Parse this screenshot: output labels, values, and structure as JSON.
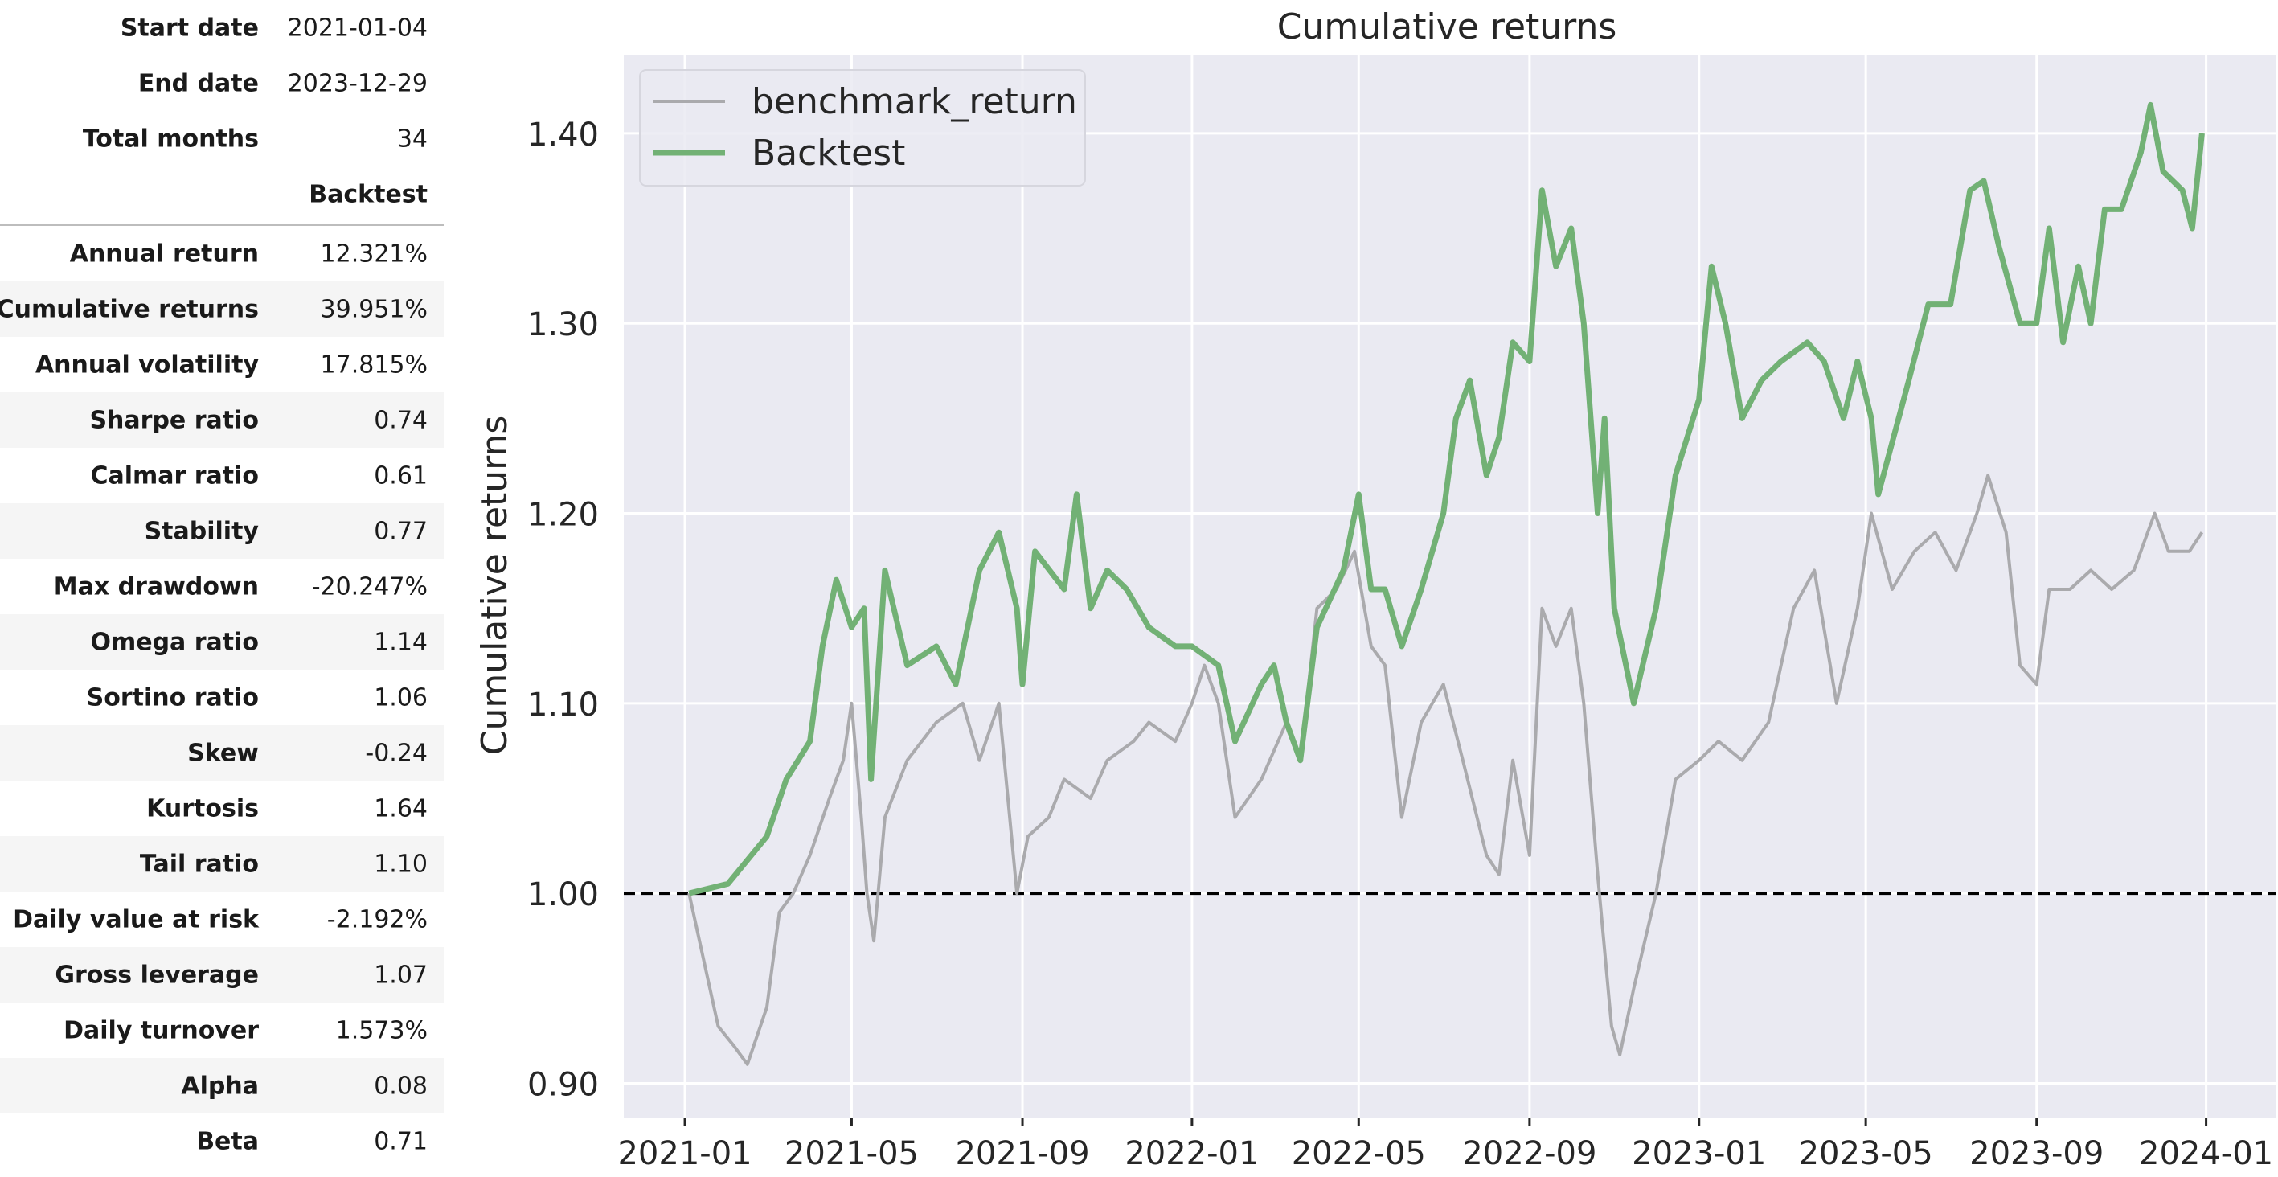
{
  "stats_table": {
    "header_rows": [
      {
        "label": "Start date",
        "value": "2021-01-04"
      },
      {
        "label": "End date",
        "value": "2023-12-29"
      },
      {
        "label": "Total months",
        "value": "34"
      }
    ],
    "column_header": "Backtest",
    "rows": [
      {
        "label": "Annual return",
        "value": "12.321%"
      },
      {
        "label": "Cumulative returns",
        "value": "39.951%"
      },
      {
        "label": "Annual volatility",
        "value": "17.815%"
      },
      {
        "label": "Sharpe ratio",
        "value": "0.74"
      },
      {
        "label": "Calmar ratio",
        "value": "0.61"
      },
      {
        "label": "Stability",
        "value": "0.77"
      },
      {
        "label": "Max drawdown",
        "value": "-20.247%"
      },
      {
        "label": "Omega ratio",
        "value": "1.14"
      },
      {
        "label": "Sortino ratio",
        "value": "1.06"
      },
      {
        "label": "Skew",
        "value": "-0.24"
      },
      {
        "label": "Kurtosis",
        "value": "1.64"
      },
      {
        "label": "Tail ratio",
        "value": "1.10"
      },
      {
        "label": "Daily value at risk",
        "value": "-2.192%"
      },
      {
        "label": "Gross leverage",
        "value": "1.07"
      },
      {
        "label": "Daily turnover",
        "value": "1.573%"
      },
      {
        "label": "Alpha",
        "value": "0.08"
      },
      {
        "label": "Beta",
        "value": "0.71"
      }
    ]
  },
  "chart_data": {
    "type": "line",
    "title": "Cumulative returns",
    "xlabel": "",
    "ylabel": "Cumulative returns",
    "xlim": [
      "2020-11-18",
      "2024-02-20"
    ],
    "ylim": [
      0.882,
      1.441
    ],
    "x_ticks": [
      "2021-01",
      "2021-05",
      "2021-09",
      "2022-01",
      "2022-05",
      "2022-09",
      "2023-01",
      "2023-05",
      "2023-09",
      "2024-01"
    ],
    "y_ticks": [
      "0.90",
      "1.00",
      "1.10",
      "1.20",
      "1.30",
      "1.40"
    ],
    "grid": true,
    "background": "#eaeaf2",
    "legend_position": "top-left",
    "reference_line": {
      "y": 1.0,
      "style": "dashed",
      "color": "#000000"
    },
    "series": [
      {
        "name": "benchmark_return",
        "color": "#aaaaad",
        "points": [
          [
            "2021-01-04",
            1.0
          ],
          [
            "2021-01-10",
            0.98
          ],
          [
            "2021-01-25",
            0.93
          ],
          [
            "2021-02-05",
            0.92
          ],
          [
            "2021-02-15",
            0.91
          ],
          [
            "2021-03-01",
            0.94
          ],
          [
            "2021-03-10",
            0.99
          ],
          [
            "2021-03-20",
            1.0
          ],
          [
            "2021-04-01",
            1.02
          ],
          [
            "2021-04-15",
            1.05
          ],
          [
            "2021-04-25",
            1.07
          ],
          [
            "2021-05-01",
            1.1
          ],
          [
            "2021-05-08",
            1.04
          ],
          [
            "2021-05-12",
            1.0
          ],
          [
            "2021-05-17",
            0.975
          ],
          [
            "2021-05-25",
            1.04
          ],
          [
            "2021-06-10",
            1.07
          ],
          [
            "2021-07-01",
            1.09
          ],
          [
            "2021-07-20",
            1.1
          ],
          [
            "2021-08-01",
            1.07
          ],
          [
            "2021-08-15",
            1.1
          ],
          [
            "2021-08-28",
            1.0
          ],
          [
            "2021-09-05",
            1.03
          ],
          [
            "2021-09-20",
            1.04
          ],
          [
            "2021-10-01",
            1.06
          ],
          [
            "2021-10-20",
            1.05
          ],
          [
            "2021-11-01",
            1.07
          ],
          [
            "2021-11-20",
            1.08
          ],
          [
            "2021-12-01",
            1.09
          ],
          [
            "2021-12-20",
            1.08
          ],
          [
            "2022-01-01",
            1.1
          ],
          [
            "2022-01-10",
            1.12
          ],
          [
            "2022-01-20",
            1.1
          ],
          [
            "2022-02-01",
            1.04
          ],
          [
            "2022-02-20",
            1.06
          ],
          [
            "2022-03-10",
            1.09
          ],
          [
            "2022-03-20",
            1.07
          ],
          [
            "2022-04-01",
            1.15
          ],
          [
            "2022-04-15",
            1.16
          ],
          [
            "2022-04-28",
            1.18
          ],
          [
            "2022-05-10",
            1.13
          ],
          [
            "2022-05-20",
            1.12
          ],
          [
            "2022-06-01",
            1.04
          ],
          [
            "2022-06-15",
            1.09
          ],
          [
            "2022-07-01",
            1.11
          ],
          [
            "2022-07-15",
            1.07
          ],
          [
            "2022-08-01",
            1.02
          ],
          [
            "2022-08-10",
            1.01
          ],
          [
            "2022-08-20",
            1.07
          ],
          [
            "2022-09-01",
            1.02
          ],
          [
            "2022-09-10",
            1.15
          ],
          [
            "2022-09-20",
            1.13
          ],
          [
            "2022-10-01",
            1.15
          ],
          [
            "2022-10-10",
            1.1
          ],
          [
            "2022-10-20",
            1.01
          ],
          [
            "2022-10-30",
            0.93
          ],
          [
            "2022-11-05",
            0.915
          ],
          [
            "2022-11-15",
            0.95
          ],
          [
            "2022-12-01",
            1.0
          ],
          [
            "2022-12-15",
            1.06
          ],
          [
            "2023-01-01",
            1.07
          ],
          [
            "2023-01-15",
            1.08
          ],
          [
            "2023-02-01",
            1.07
          ],
          [
            "2023-02-20",
            1.09
          ],
          [
            "2023-03-10",
            1.15
          ],
          [
            "2023-03-25",
            1.17
          ],
          [
            "2023-04-10",
            1.1
          ],
          [
            "2023-04-25",
            1.15
          ],
          [
            "2023-05-05",
            1.2
          ],
          [
            "2023-05-20",
            1.16
          ],
          [
            "2023-06-05",
            1.18
          ],
          [
            "2023-06-20",
            1.19
          ],
          [
            "2023-07-05",
            1.17
          ],
          [
            "2023-07-20",
            1.2
          ],
          [
            "2023-07-28",
            1.22
          ],
          [
            "2023-08-10",
            1.19
          ],
          [
            "2023-08-20",
            1.12
          ],
          [
            "2023-09-01",
            1.11
          ],
          [
            "2023-09-10",
            1.16
          ],
          [
            "2023-09-25",
            1.16
          ],
          [
            "2023-10-10",
            1.17
          ],
          [
            "2023-10-25",
            1.16
          ],
          [
            "2023-11-10",
            1.17
          ],
          [
            "2023-11-25",
            1.2
          ],
          [
            "2023-12-05",
            1.18
          ],
          [
            "2023-12-20",
            1.18
          ],
          [
            "2023-12-29",
            1.19
          ]
        ]
      },
      {
        "name": "Backtest",
        "color": "#72b175",
        "points": [
          [
            "2021-01-04",
            1.0
          ],
          [
            "2021-02-01",
            1.005
          ],
          [
            "2021-03-01",
            1.03
          ],
          [
            "2021-03-15",
            1.06
          ],
          [
            "2021-04-01",
            1.08
          ],
          [
            "2021-04-10",
            1.13
          ],
          [
            "2021-04-20",
            1.165
          ],
          [
            "2021-05-01",
            1.14
          ],
          [
            "2021-05-10",
            1.15
          ],
          [
            "2021-05-15",
            1.06
          ],
          [
            "2021-05-25",
            1.17
          ],
          [
            "2021-06-10",
            1.12
          ],
          [
            "2021-07-01",
            1.13
          ],
          [
            "2021-07-15",
            1.11
          ],
          [
            "2021-08-01",
            1.17
          ],
          [
            "2021-08-15",
            1.19
          ],
          [
            "2021-08-28",
            1.15
          ],
          [
            "2021-09-01",
            1.11
          ],
          [
            "2021-09-10",
            1.18
          ],
          [
            "2021-10-01",
            1.16
          ],
          [
            "2021-10-10",
            1.21
          ],
          [
            "2021-10-20",
            1.15
          ],
          [
            "2021-11-01",
            1.17
          ],
          [
            "2021-11-15",
            1.16
          ],
          [
            "2021-12-01",
            1.14
          ],
          [
            "2021-12-20",
            1.13
          ],
          [
            "2022-01-01",
            1.13
          ],
          [
            "2022-01-20",
            1.12
          ],
          [
            "2022-02-01",
            1.08
          ],
          [
            "2022-02-20",
            1.11
          ],
          [
            "2022-03-01",
            1.12
          ],
          [
            "2022-03-10",
            1.09
          ],
          [
            "2022-03-20",
            1.07
          ],
          [
            "2022-04-01",
            1.14
          ],
          [
            "2022-04-20",
            1.17
          ],
          [
            "2022-05-01",
            1.21
          ],
          [
            "2022-05-10",
            1.16
          ],
          [
            "2022-05-20",
            1.16
          ],
          [
            "2022-06-01",
            1.13
          ],
          [
            "2022-06-15",
            1.16
          ],
          [
            "2022-07-01",
            1.2
          ],
          [
            "2022-07-10",
            1.25
          ],
          [
            "2022-07-20",
            1.27
          ],
          [
            "2022-08-01",
            1.22
          ],
          [
            "2022-08-10",
            1.24
          ],
          [
            "2022-08-20",
            1.29
          ],
          [
            "2022-09-01",
            1.28
          ],
          [
            "2022-09-10",
            1.37
          ],
          [
            "2022-09-20",
            1.33
          ],
          [
            "2022-10-01",
            1.35
          ],
          [
            "2022-10-10",
            1.3
          ],
          [
            "2022-10-20",
            1.2
          ],
          [
            "2022-10-25",
            1.25
          ],
          [
            "2022-11-01",
            1.15
          ],
          [
            "2022-11-15",
            1.1
          ],
          [
            "2022-12-01",
            1.15
          ],
          [
            "2022-12-15",
            1.22
          ],
          [
            "2023-01-01",
            1.26
          ],
          [
            "2023-01-10",
            1.33
          ],
          [
            "2023-01-20",
            1.3
          ],
          [
            "2023-02-01",
            1.25
          ],
          [
            "2023-02-15",
            1.27
          ],
          [
            "2023-03-01",
            1.28
          ],
          [
            "2023-03-20",
            1.29
          ],
          [
            "2023-04-01",
            1.28
          ],
          [
            "2023-04-15",
            1.25
          ],
          [
            "2023-04-25",
            1.28
          ],
          [
            "2023-05-05",
            1.25
          ],
          [
            "2023-05-10",
            1.21
          ],
          [
            "2023-06-01",
            1.27
          ],
          [
            "2023-06-15",
            1.31
          ],
          [
            "2023-07-01",
            1.31
          ],
          [
            "2023-07-15",
            1.37
          ],
          [
            "2023-07-25",
            1.375
          ],
          [
            "2023-08-05",
            1.34
          ],
          [
            "2023-08-20",
            1.3
          ],
          [
            "2023-09-01",
            1.3
          ],
          [
            "2023-09-10",
            1.35
          ],
          [
            "2023-09-20",
            1.29
          ],
          [
            "2023-10-01",
            1.33
          ],
          [
            "2023-10-10",
            1.3
          ],
          [
            "2023-10-20",
            1.36
          ],
          [
            "2023-11-01",
            1.36
          ],
          [
            "2023-11-15",
            1.39
          ],
          [
            "2023-11-22",
            1.415
          ],
          [
            "2023-12-01",
            1.38
          ],
          [
            "2023-12-15",
            1.37
          ],
          [
            "2023-12-22",
            1.35
          ],
          [
            "2023-12-29",
            1.4
          ]
        ]
      }
    ]
  }
}
